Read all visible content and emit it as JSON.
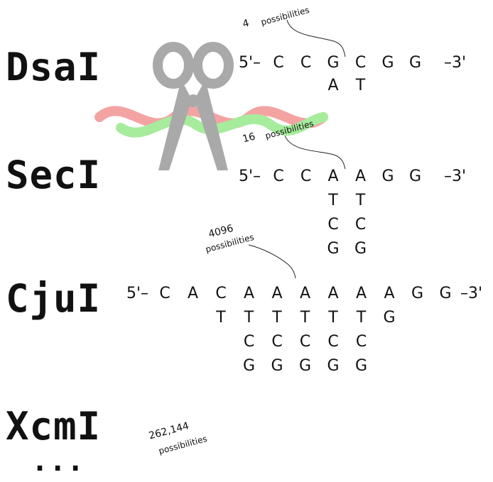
{
  "rows": [
    {
      "id": "dsai",
      "enzyme": "DsaI",
      "prefix": "5'–",
      "bases": [
        "C",
        "C",
        "G",
        "C",
        "G",
        "G"
      ],
      "suffix": "–3'",
      "variants": [
        [],
        [],
        [
          "A"
        ],
        [
          "T"
        ],
        [],
        []
      ],
      "count": "4",
      "count_label": "possibilities"
    },
    {
      "id": "seci",
      "enzyme": "SecI",
      "prefix": "5'–",
      "bases": [
        "C",
        "C",
        "A",
        "A",
        "G",
        "G"
      ],
      "suffix": "–3'",
      "variants": [
        [],
        [],
        [
          "T",
          "C",
          "G"
        ],
        [
          "T",
          "C",
          "G"
        ],
        [],
        []
      ],
      "count": "16",
      "count_label": "possibilities"
    },
    {
      "id": "cjui",
      "enzyme": "CjuI",
      "prefix": "5'–",
      "bases": [
        "C",
        "A",
        "C",
        "A",
        "A",
        "A",
        "A",
        "A",
        "A",
        "G",
        "G"
      ],
      "suffix": "–3'",
      "variants": [
        [],
        [],
        [
          "T"
        ],
        [
          "T",
          "C",
          "G"
        ],
        [
          "T",
          "C",
          "G"
        ],
        [
          "T",
          "C",
          "G"
        ],
        [
          "T",
          "C",
          "G"
        ],
        [
          "T",
          "C",
          "G"
        ],
        [
          "G"
        ],
        [],
        []
      ],
      "count": "4096",
      "count_label": "possibilities"
    },
    {
      "id": "xcmi",
      "enzyme": "XcmI",
      "count": "262,144",
      "count_label": "possibilities"
    }
  ],
  "ellipsis": "...",
  "colors": {
    "dna_strand_1": "#f4a3a3",
    "dna_strand_2": "#a6ec9c",
    "scissors": "#a9a9a9"
  },
  "icons": {
    "scissors": "scissors-icon",
    "dna": "dna-helix-icon"
  }
}
